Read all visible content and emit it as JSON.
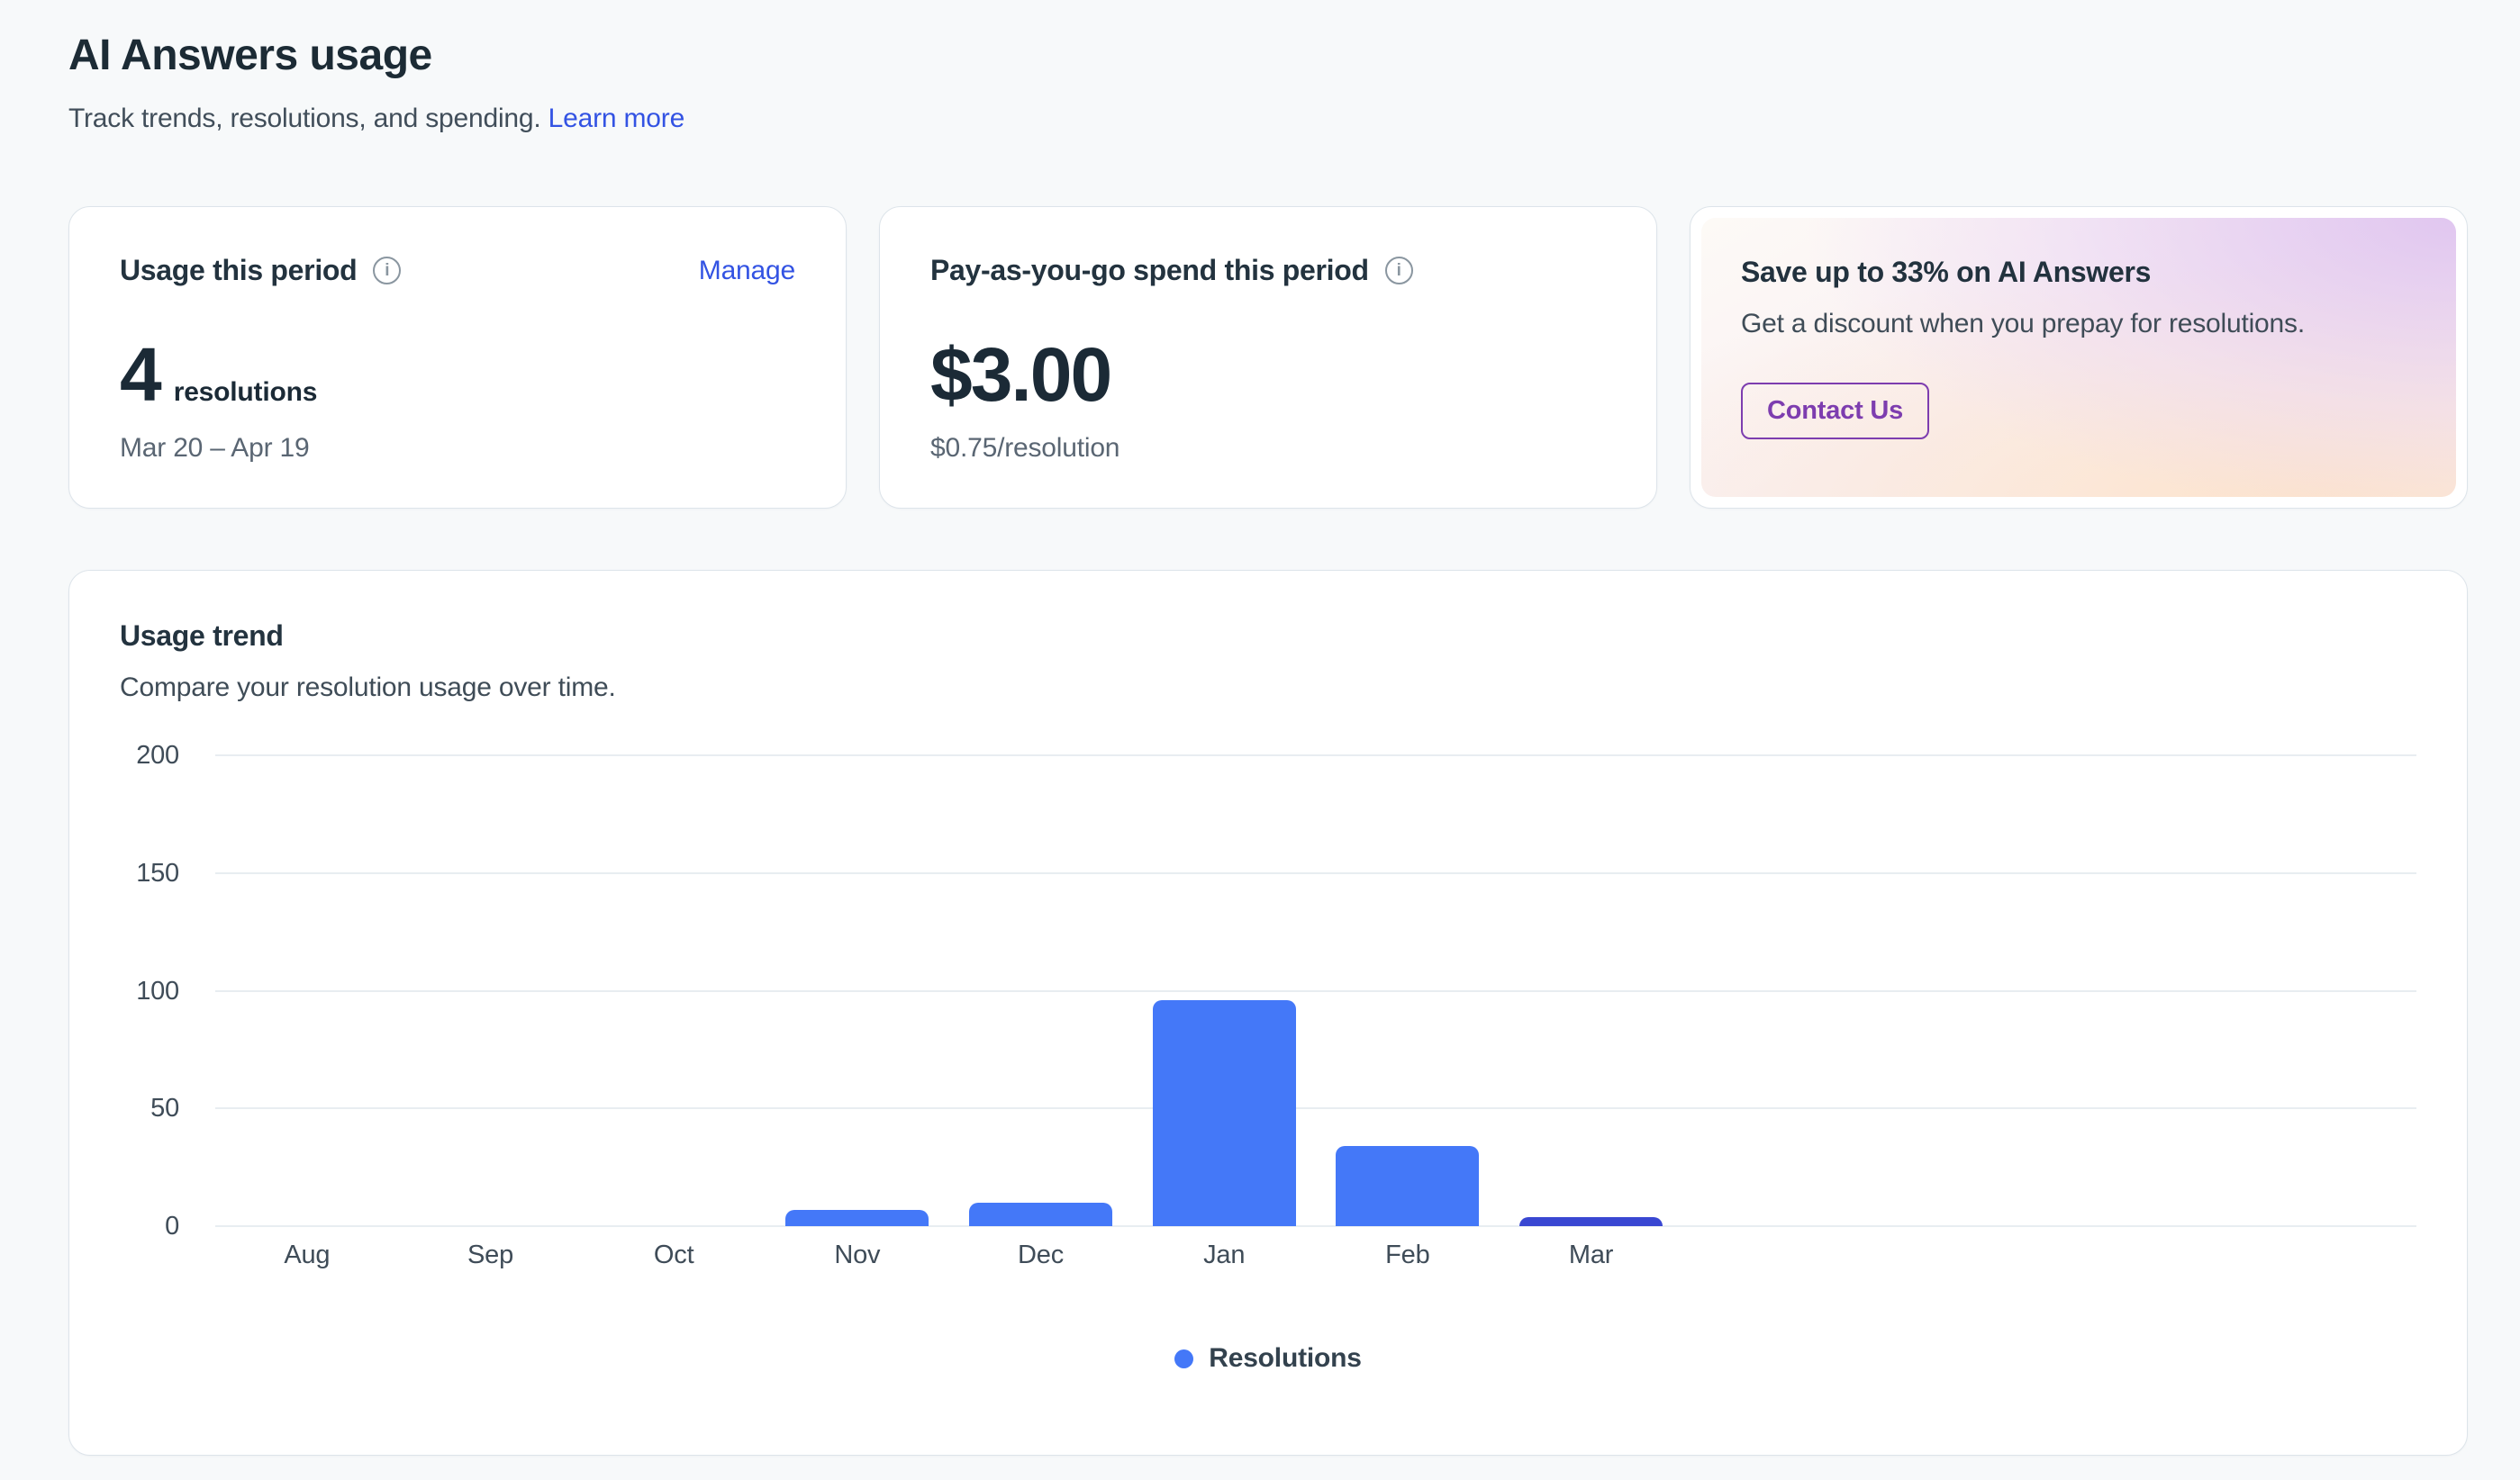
{
  "header": {
    "title": "AI Answers usage",
    "subtitle": "Track trends, resolutions, and spending.",
    "learn_more_label": "Learn more"
  },
  "cards": {
    "usage": {
      "title": "Usage this period",
      "info_icon": "i",
      "manage_label": "Manage",
      "value": "4",
      "unit": "resolutions",
      "period": "Mar 20 – Apr 19"
    },
    "spend": {
      "title": "Pay-as-you-go spend this period",
      "info_icon": "i",
      "value": "$3.00",
      "rate": "$0.75/resolution"
    },
    "promo": {
      "title": "Save up to 33% on AI Answers",
      "description": "Get a discount when you prepay for resolutions.",
      "cta_label": "Contact Us",
      "accent_color": "#7d3daf"
    }
  },
  "chart_card": {
    "title": "Usage trend",
    "subtitle": "Compare your resolution usage over time."
  },
  "chart_data": {
    "type": "bar",
    "title": "Usage trend",
    "categories": [
      "Aug",
      "Sep",
      "Oct",
      "Nov",
      "Dec",
      "Jan",
      "Feb",
      "Mar"
    ],
    "values": [
      0,
      0,
      0,
      7,
      10,
      96,
      34,
      4
    ],
    "xlabel": "",
    "ylabel": "",
    "ylim": [
      0,
      200
    ],
    "yticks": [
      0,
      50,
      100,
      150,
      200
    ],
    "axis_slots": 12,
    "grid": true,
    "bar_color": "#4478f8",
    "current_bar_color": "#3947d2",
    "current_index": 7,
    "legend": [
      {
        "label": "Resolutions",
        "color": "#4478f8"
      }
    ],
    "legend_position": "bottom-center"
  },
  "colors": {
    "page_background": "#f7f9fa",
    "card_background": "#ffffff",
    "link": "#3353e3",
    "heading": "#1c2b35"
  }
}
